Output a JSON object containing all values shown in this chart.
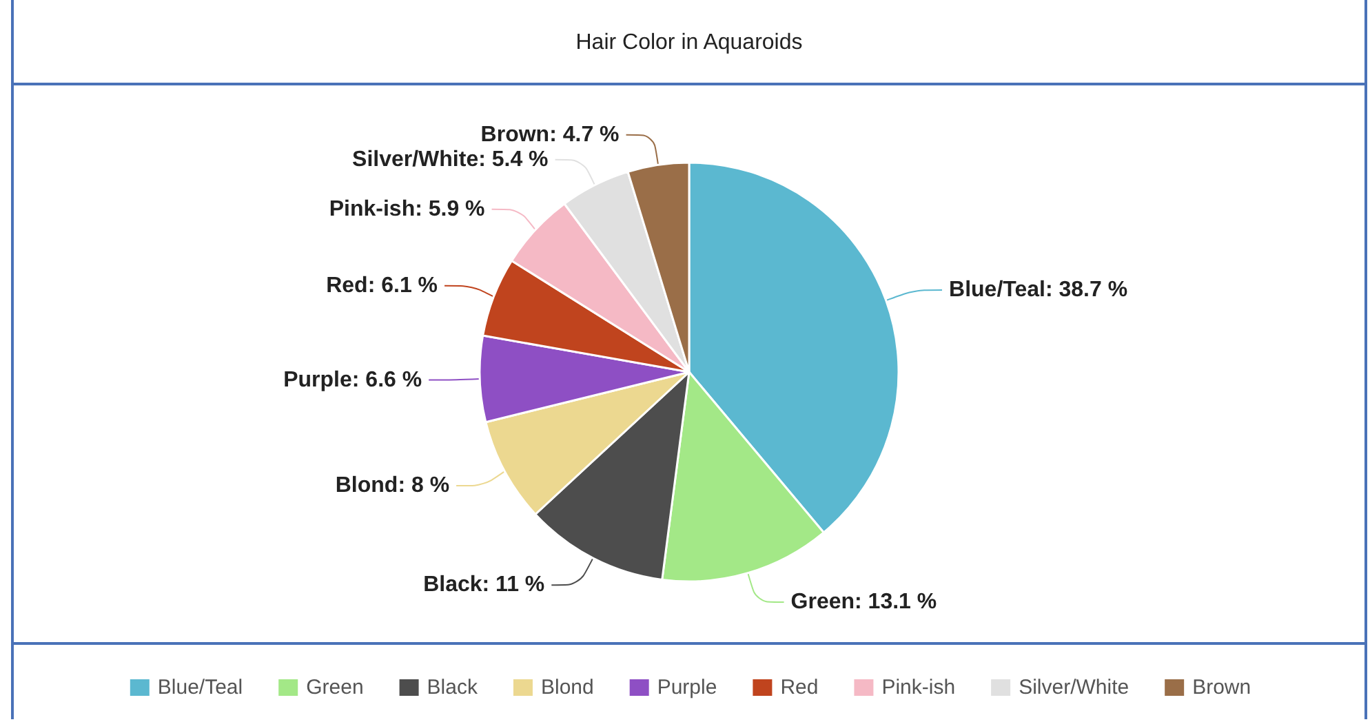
{
  "chart_data": {
    "type": "pie",
    "title": "Hair Color in Aquaroids",
    "categories": [
      "Blue/Teal",
      "Green",
      "Black",
      "Blond",
      "Purple",
      "Red",
      "Pink-ish",
      "Silver/White",
      "Brown"
    ],
    "values": [
      38.7,
      13.1,
      11,
      8,
      6.6,
      6.1,
      5.9,
      5.4,
      4.7
    ],
    "value_labels": [
      "Blue/Teal: 38.7 %",
      "Green: 13.1 %",
      "Black: 11 %",
      "Blond: 8 %",
      "Purple: 6.6 %",
      "Red: 6.1 %",
      "Pink-ish: 5.9 %",
      "Silver/White: 5.4 %",
      "Brown: 4.7 %"
    ],
    "colors": [
      "#5bb8d0",
      "#a3e887",
      "#4d4d4d",
      "#ecd890",
      "#8e4fc4",
      "#c0441e",
      "#f5b9c5",
      "#e0e0e0",
      "#9a6e48"
    ],
    "legend": "bottom"
  }
}
